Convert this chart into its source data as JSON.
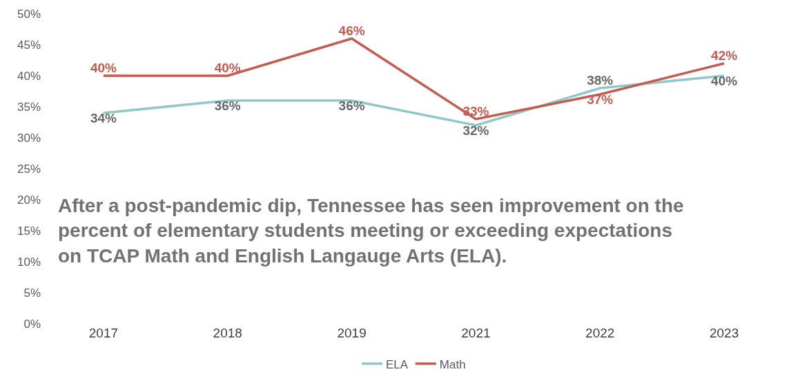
{
  "chart_data": {
    "type": "line",
    "categories": [
      "2017",
      "2018",
      "2019",
      "2021",
      "2022",
      "2023"
    ],
    "series": [
      {
        "name": "ELA",
        "color": "#8ec9c7",
        "values": [
          34,
          36,
          36,
          32,
          38,
          40
        ],
        "value_labels": [
          "34%",
          "36%",
          "36%",
          "32%",
          "38%",
          "40%"
        ]
      },
      {
        "name": "Math",
        "color": "#c65a4e",
        "values": [
          40,
          40,
          46,
          33,
          37,
          42
        ],
        "value_labels": [
          "40%",
          "40%",
          "46%",
          "33%",
          "37%",
          "42%"
        ]
      }
    ],
    "ylim": [
      0,
      50
    ],
    "yticks": [
      {
        "value": 0,
        "label": "0%"
      },
      {
        "value": 5,
        "label": "5%"
      },
      {
        "value": 10,
        "label": "10%"
      },
      {
        "value": 15,
        "label": "15%"
      },
      {
        "value": 20,
        "label": "20%"
      },
      {
        "value": 25,
        "label": "25%"
      },
      {
        "value": 30,
        "label": "30%"
      },
      {
        "value": 35,
        "label": "35%"
      },
      {
        "value": 40,
        "label": "40%"
      },
      {
        "value": 45,
        "label": "45%"
      },
      {
        "value": 50,
        "label": "50%"
      }
    ],
    "annotations": [
      "After a post-pandemic dip, Tennessee has seen improvement on the percent of elementary students meeting or exceeding expectations on TCAP Math and English Langauge Arts (ELA)."
    ],
    "grid": false,
    "legend": "bottom",
    "marker": "none",
    "line_style": "solid"
  }
}
